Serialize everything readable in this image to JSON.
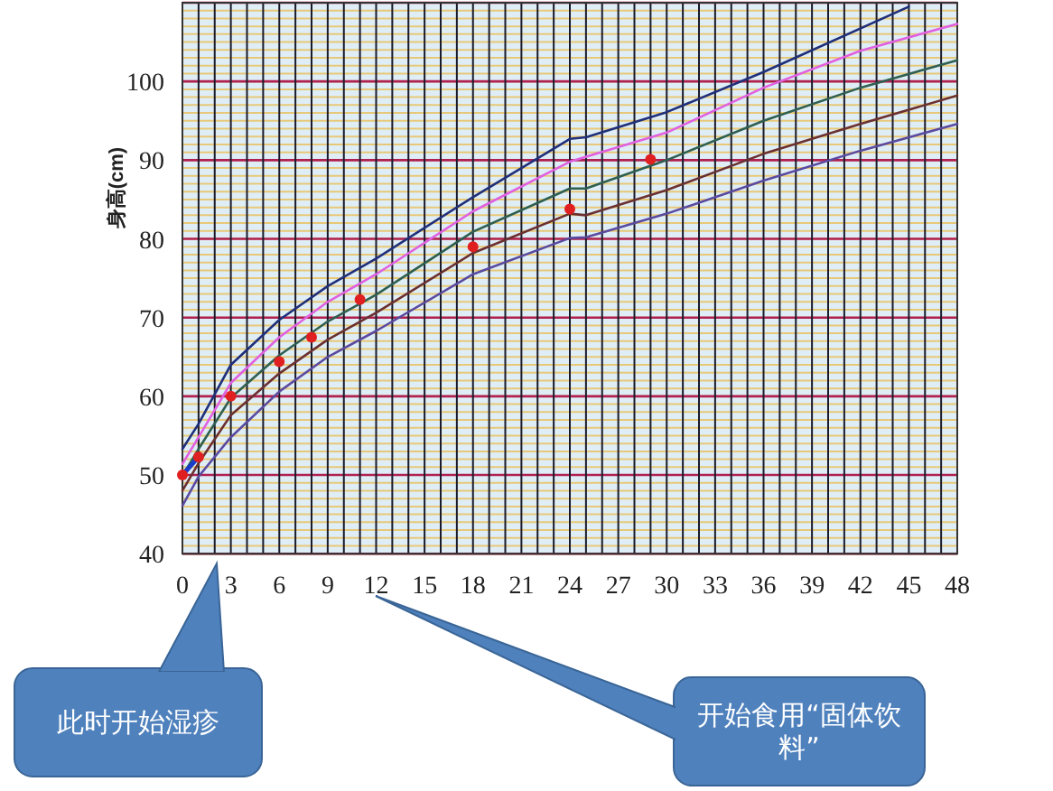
{
  "chart_data": {
    "type": "line",
    "ylabel": "身高(cm)",
    "xlim": [
      0,
      48
    ],
    "xticks": [
      0,
      3,
      6,
      9,
      12,
      15,
      18,
      21,
      24,
      27,
      30,
      33,
      36,
      39,
      42,
      45,
      48
    ],
    "ylim": [
      40,
      110
    ],
    "yticks": [
      40,
      50,
      60,
      70,
      80,
      90,
      100,
      {
        "value": 110,
        "label": null
      }
    ],
    "grid": true,
    "line_style": "solid",
    "series": [
      {
        "color": "#1f2f7a",
        "marker": "none",
        "x": [
          0,
          1,
          3,
          6,
          9,
          12,
          18,
          21,
          24,
          25,
          30,
          36,
          45
        ],
        "values": [
          53.3,
          56.5,
          64,
          69.7,
          74,
          77.5,
          85.3,
          89,
          92.7,
          92.9,
          96.1,
          101.2,
          109.5
        ]
      },
      {
        "color": "#e060e0",
        "marker": "none",
        "x": [
          0,
          1,
          3,
          6,
          9,
          12,
          18,
          24,
          30,
          36,
          42,
          48
        ],
        "values": [
          51.4,
          54.8,
          61.7,
          67.5,
          72,
          75.5,
          83.5,
          89.8,
          93.5,
          99.2,
          103.9,
          107.3
        ]
      },
      {
        "color": "#2f5f50",
        "marker": "none",
        "x": [
          0,
          1,
          3,
          6,
          9,
          12,
          18,
          24,
          25,
          30,
          36,
          42,
          48
        ],
        "values": [
          49.9,
          53.3,
          59.8,
          65.2,
          69.5,
          72.9,
          80.9,
          86.4,
          86.4,
          90,
          95,
          99.2,
          102.7
        ]
      },
      {
        "color": "#6b3030",
        "marker": "none",
        "x": [
          0,
          1,
          3,
          6,
          9,
          12,
          18,
          24,
          25,
          30,
          36,
          42,
          48
        ],
        "values": [
          48,
          51.5,
          57.6,
          62.9,
          67.2,
          70.6,
          78.2,
          83.2,
          83,
          86.2,
          90.8,
          94.6,
          98.2
        ]
      },
      {
        "color": "#5a4aa0",
        "marker": "none",
        "x": [
          0,
          1,
          3,
          6,
          9,
          12,
          18,
          24,
          25,
          30,
          36,
          42,
          48
        ],
        "values": [
          46.1,
          49.8,
          54.8,
          60.6,
          65,
          68.3,
          75.5,
          80.1,
          80.2,
          83.2,
          87.4,
          91.2,
          94.6
        ]
      },
      {
        "color": "#1a3cc8",
        "marker": "none",
        "x": [
          0,
          1
        ],
        "values": [
          50,
          52.3
        ]
      },
      {
        "type": "scatter",
        "color": "#e02020",
        "marker": "circle",
        "x": [
          0,
          1,
          3,
          6,
          8,
          11,
          18,
          24,
          29
        ],
        "values": [
          50,
          52.3,
          60,
          64.4,
          67.5,
          72.3,
          79,
          83.8,
          90.1
        ]
      }
    ],
    "annotations": [
      "此时开始湿疹",
      "开始食用“固体饮料”"
    ]
  }
}
